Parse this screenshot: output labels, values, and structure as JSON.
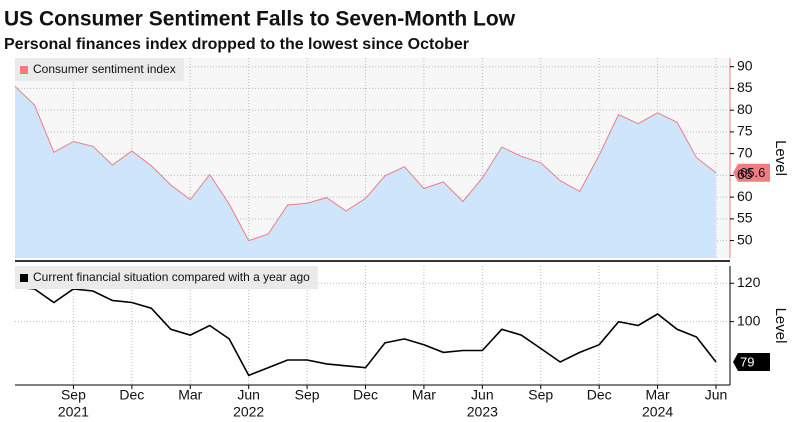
{
  "header": {
    "title": "US Consumer Sentiment Falls to Seven-Month Low",
    "subtitle": "Personal finances index dropped to the lowest since October"
  },
  "chart_data": [
    {
      "type": "area",
      "axis_label": "Level",
      "grid": true,
      "x": [
        "2021-06",
        "2021-07",
        "2021-08",
        "2021-09",
        "2021-10",
        "2021-11",
        "2021-12",
        "2022-01",
        "2022-02",
        "2022-03",
        "2022-04",
        "2022-05",
        "2022-06",
        "2022-07",
        "2022-08",
        "2022-09",
        "2022-10",
        "2022-11",
        "2022-12",
        "2023-01",
        "2023-02",
        "2023-03",
        "2023-04",
        "2023-05",
        "2023-06",
        "2023-07",
        "2023-08",
        "2023-09",
        "2023-10",
        "2023-11",
        "2023-12",
        "2024-01",
        "2024-02",
        "2024-03",
        "2024-04",
        "2024-05",
        "2024-06"
      ],
      "series": [
        {
          "name": "Consumer sentiment index",
          "color": "#f07c84",
          "fill": "#cfe5fb",
          "values": [
            85.5,
            81.2,
            70.3,
            72.8,
            71.7,
            67.4,
            70.6,
            67.2,
            62.8,
            59.4,
            65.2,
            58.4,
            50.0,
            51.5,
            58.2,
            58.6,
            59.9,
            56.8,
            59.7,
            64.9,
            67.0,
            62.0,
            63.5,
            59.0,
            64.4,
            71.5,
            69.4,
            67.9,
            63.8,
            61.3,
            69.7,
            79.0,
            76.9,
            79.4,
            77.2,
            69.1,
            65.6
          ]
        }
      ],
      "ylim": [
        46,
        92
      ],
      "yticks": [
        50,
        55,
        60,
        65,
        70,
        75,
        80,
        85,
        90
      ]
    },
    {
      "type": "line",
      "axis_label": "Level",
      "grid": true,
      "x": [
        "2021-06",
        "2021-07",
        "2021-08",
        "2021-09",
        "2021-10",
        "2021-11",
        "2021-12",
        "2022-01",
        "2022-02",
        "2022-03",
        "2022-04",
        "2022-05",
        "2022-06",
        "2022-07",
        "2022-08",
        "2022-09",
        "2022-10",
        "2022-11",
        "2022-12",
        "2023-01",
        "2023-02",
        "2023-03",
        "2023-04",
        "2023-05",
        "2023-06",
        "2023-07",
        "2023-08",
        "2023-09",
        "2023-10",
        "2023-11",
        "2023-12",
        "2024-01",
        "2024-02",
        "2024-03",
        "2024-04",
        "2024-05",
        "2024-06"
      ],
      "series": [
        {
          "name": "Current financial situation compared with a year ago",
          "color": "#000000",
          "values": [
            118,
            117,
            110,
            117,
            116,
            111,
            110,
            107,
            96,
            93,
            98,
            91,
            72,
            76,
            80,
            80,
            78,
            77,
            76,
            89,
            91,
            88,
            84,
            85,
            85,
            96,
            93,
            86,
            79,
            84,
            88,
            100,
            98,
            104,
            96,
            92,
            79
          ]
        }
      ],
      "ylim": [
        67,
        129
      ],
      "yticks": [
        100,
        120
      ],
      "xticks": [
        {
          "value": "2021-09",
          "label": "Sep"
        },
        {
          "value": "2021-12",
          "label": "Dec"
        },
        {
          "value": "2022-03",
          "label": "Mar"
        },
        {
          "value": "2022-06",
          "label": "Jun"
        },
        {
          "value": "2022-09",
          "label": "Sep"
        },
        {
          "value": "2022-12",
          "label": "Dec"
        },
        {
          "value": "2023-03",
          "label": "Mar"
        },
        {
          "value": "2023-06",
          "label": "Jun"
        },
        {
          "value": "2023-09",
          "label": "Sep"
        },
        {
          "value": "2023-12",
          "label": "Dec"
        },
        {
          "value": "2024-03",
          "label": "Mar"
        },
        {
          "value": "2024-06",
          "label": "Jun"
        }
      ],
      "year_labels": [
        {
          "value": "2021-09",
          "label": "2021"
        },
        {
          "value": "2022-06",
          "label": "2022"
        },
        {
          "value": "2023-06",
          "label": "2023"
        },
        {
          "value": "2024-03",
          "label": "2024"
        }
      ]
    }
  ]
}
